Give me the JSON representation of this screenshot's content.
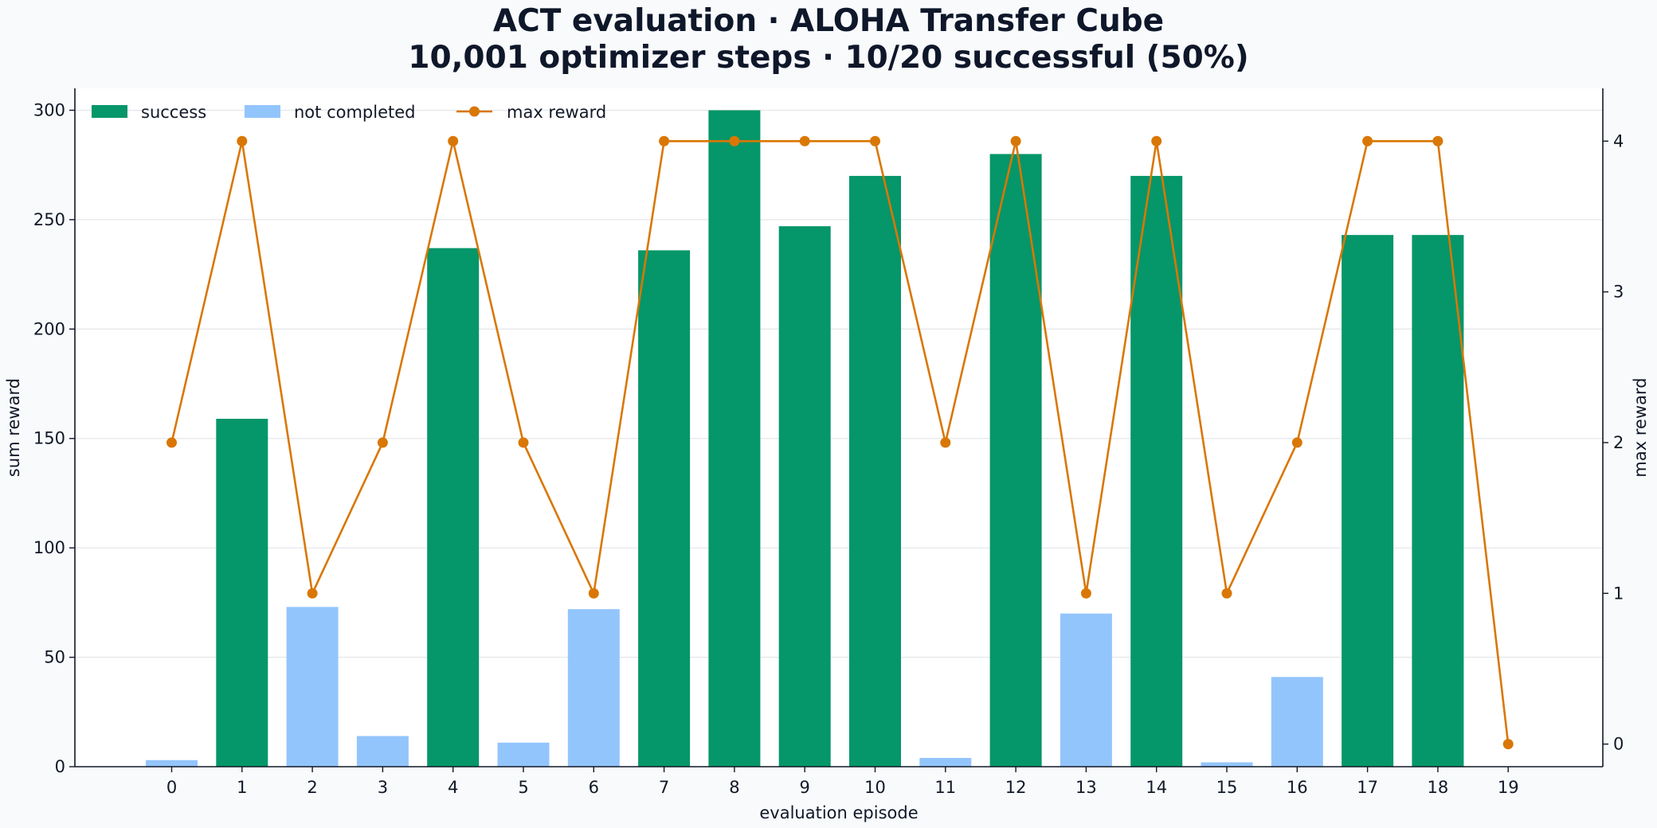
{
  "chart_data": {
    "type": "bar",
    "title": "ACT evaluation · ALOHA Transfer Cube",
    "subtitle": "10,001 optimizer steps · 10/20 successful (50%)",
    "xlabel": "evaluation episode",
    "ylabel": "sum reward",
    "y2label": "max reward",
    "categories": [
      "0",
      "1",
      "2",
      "3",
      "4",
      "5",
      "6",
      "7",
      "8",
      "9",
      "10",
      "11",
      "12",
      "13",
      "14",
      "15",
      "16",
      "17",
      "18",
      "19"
    ],
    "series": [
      {
        "name": "sum reward",
        "type": "bar",
        "axis": "left",
        "values": [
          3,
          159,
          73,
          14,
          237,
          11,
          72,
          236,
          300,
          247,
          270,
          4,
          280,
          70,
          270,
          2,
          41,
          243,
          243,
          0
        ],
        "success": [
          false,
          true,
          false,
          false,
          true,
          false,
          false,
          true,
          true,
          true,
          true,
          false,
          true,
          false,
          true,
          false,
          false,
          true,
          true,
          false
        ]
      },
      {
        "name": "max reward",
        "type": "line",
        "axis": "right",
        "values": [
          2,
          4,
          1,
          2,
          4,
          2,
          1,
          4,
          4,
          4,
          4,
          2,
          4,
          1,
          4,
          1,
          2,
          4,
          4,
          0
        ]
      }
    ],
    "ylim": [
      0,
      310
    ],
    "y2lim": [
      -0.15,
      4.35
    ],
    "yticks": [
      0,
      50,
      100,
      150,
      200,
      250,
      300
    ],
    "y2ticks": [
      0,
      1,
      2,
      3,
      4
    ],
    "grid": "horizontal",
    "legend": {
      "position": "top-left",
      "entries": [
        {
          "label": "success",
          "kind": "bar",
          "color": "#059669"
        },
        {
          "label": "not completed",
          "kind": "bar",
          "color": "#93c5fd"
        },
        {
          "label": "max reward",
          "kind": "line",
          "color": "#d97706"
        }
      ]
    },
    "colors": {
      "success": "#059669",
      "not_completed": "#93c5fd",
      "max_reward": "#d97706",
      "plot_background": "#ffffff",
      "page_background": "#f8fafc"
    }
  }
}
